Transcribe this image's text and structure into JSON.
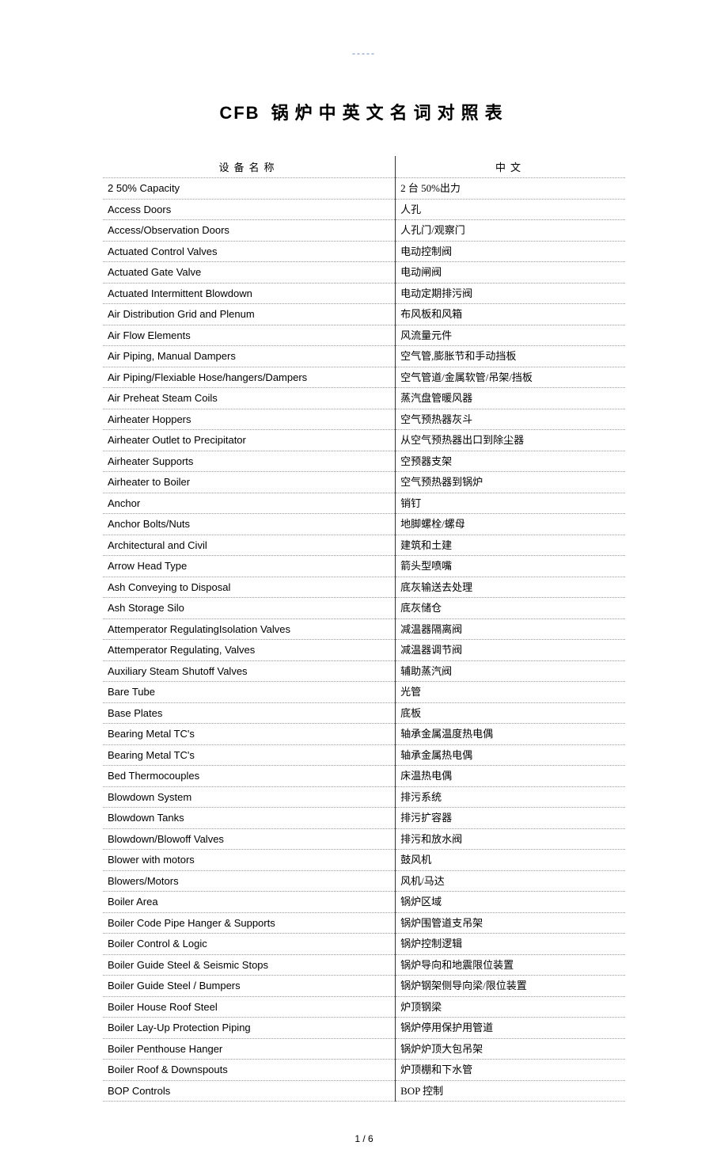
{
  "top_marker": "-----",
  "title_prefix": "CFB",
  "title_rest": "锅炉中英文名词对照表",
  "headers": {
    "col1": "设备名称",
    "col2": "中文"
  },
  "rows": [
    {
      "en": "2   50% Capacity",
      "cn": "2 台 50%出力"
    },
    {
      "en": "Access Doors",
      "cn": "人孔"
    },
    {
      "en": "Access/Observation Doors",
      "cn": "人孔门/观察门"
    },
    {
      "en": "Actuated Control Valves",
      "cn": "电动控制阀"
    },
    {
      "en": "Actuated Gate Valve",
      "cn": "电动闸阀"
    },
    {
      "en": "Actuated Intermittent Blowdown",
      "cn": "电动定期排污阀"
    },
    {
      "en": "Air Distribution Grid and Plenum",
      "cn": "布风板和风箱"
    },
    {
      "en": "Air Flow Elements",
      "cn": "风流量元件"
    },
    {
      "en": "Air Piping, Manual Dampers",
      "cn": "空气管,膨胀节和手动挡板"
    },
    {
      "en": "Air Piping/Flexiable Hose/hangers/Dampers",
      "cn": "空气管道/金属软管/吊架/挡板"
    },
    {
      "en": "Air Preheat Steam Coils",
      "cn": "蒸汽盘管暖风器"
    },
    {
      "en": "Airheater Hoppers",
      "cn": "空气预热器灰斗"
    },
    {
      "en": "Airheater Outlet to Precipitator",
      "cn": "从空气预热器出口到除尘器"
    },
    {
      "en": "Airheater Supports",
      "cn": "空预器支架"
    },
    {
      "en": "Airheater to Boiler",
      "cn": "空气预热器到锅炉"
    },
    {
      "en": "Anchor",
      "cn": "销钉"
    },
    {
      "en": "Anchor Bolts/Nuts",
      "cn": "地脚螺栓/螺母"
    },
    {
      "en": "Architectural and Civil",
      "cn": "建筑和土建"
    },
    {
      "en": "Arrow Head Type",
      "cn": "箭头型喷嘴"
    },
    {
      "en": "Ash Conveying to Disposal",
      "cn": "底灰输送去处理"
    },
    {
      "en": "Ash Storage Silo",
      "cn": "底灰储仓"
    },
    {
      "en": "Attemperator RegulatingIsolation Valves",
      "cn": "减温器隔离阀"
    },
    {
      "en": "Attemperator Regulating, Valves",
      "cn": "减温器调节阀"
    },
    {
      "en": "Auxiliary Steam Shutoff Valves",
      "cn": "辅助蒸汽阀"
    },
    {
      "en": "Bare Tube",
      "cn": "光管"
    },
    {
      "en": "Base Plates",
      "cn": "底板"
    },
    {
      "en": "Bearing Metal TC's",
      "cn": "轴承金属温度热电偶"
    },
    {
      "en": "Bearing Metal TC's",
      "cn": "轴承金属热电偶"
    },
    {
      "en": "Bed Thermocouples",
      "cn": "床温热电偶"
    },
    {
      "en": "Blowdown System",
      "cn": "排污系统"
    },
    {
      "en": "Blowdown Tanks",
      "cn": "排污扩容器"
    },
    {
      "en": "Blowdown/Blowoff Valves",
      "cn": "排污和放水阀"
    },
    {
      "en": "Blower with motors",
      "cn": "鼓风机"
    },
    {
      "en": "Blowers/Motors",
      "cn": "风机/马达"
    },
    {
      "en": "Boiler Area",
      "cn": "锅炉区域"
    },
    {
      "en": "Boiler Code Pipe Hanger & Supports",
      "cn": "锅炉围管道支吊架"
    },
    {
      "en": "Boiler Control & Logic",
      "cn": "锅炉控制逻辑"
    },
    {
      "en": "Boiler Guide Steel & Seismic Stops",
      "cn": "锅炉导向和地震限位装置"
    },
    {
      "en": "Boiler Guide Steel / Bumpers",
      "cn": "锅炉钢架侧导向梁/限位装置"
    },
    {
      "en": "Boiler House Roof Steel",
      "cn": "炉顶钢梁"
    },
    {
      "en": "Boiler Lay-Up Protection Piping",
      "cn": "锅炉停用保护用管道"
    },
    {
      "en": "Boiler Penthouse Hanger",
      "cn": "锅炉炉顶大包吊架"
    },
    {
      "en": "Boiler Roof & Downspouts",
      "cn": "炉顶棚和下水管"
    },
    {
      "en": "BOP Controls",
      "cn": "BOP 控制"
    }
  ],
  "page_number": "1 / 6"
}
